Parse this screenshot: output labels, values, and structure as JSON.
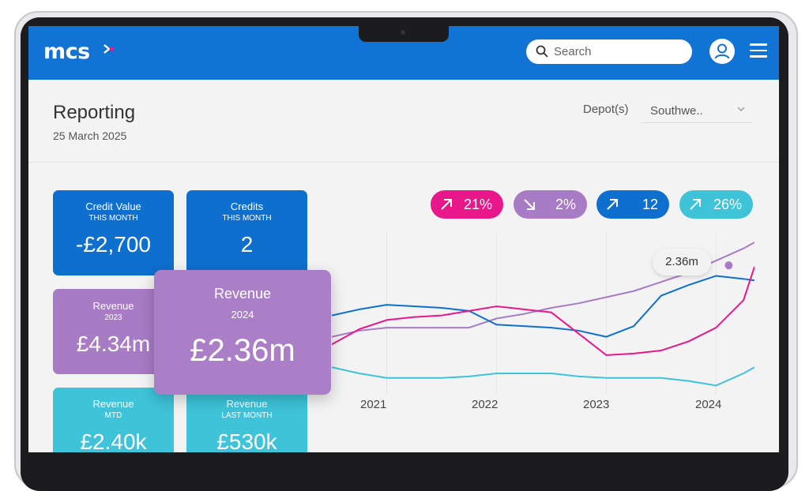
{
  "header": {
    "logo": "mcs",
    "search_placeholder": "Search",
    "icons": [
      "search-icon",
      "user-icon",
      "hamburger-menu-icon"
    ],
    "brand_color": "#1173d4"
  },
  "page": {
    "title": "Reporting",
    "date": "25 March 2025",
    "depot_label": "Depot(s)",
    "depot_value": "Southwe.."
  },
  "cards": {
    "credit_value": {
      "label": "Credit Value",
      "sub": "THIS MONTH",
      "value": "-£2,700"
    },
    "credits": {
      "label": "Credits",
      "sub": "THIS MONTH",
      "value": "2"
    },
    "revenue_2023": {
      "label": "Revenue",
      "sub": "2023",
      "value": "£4.34m"
    },
    "revenue_2024": {
      "label": "Revenue",
      "sub": "2024",
      "value": "£2.36m"
    },
    "revenue_mtd": {
      "label": "Revenue",
      "sub": "MTD",
      "value": "£2.40k"
    },
    "revenue_last_month": {
      "label": "Revenue",
      "sub": "LAST MONTH",
      "value": "£530k"
    }
  },
  "kpi_pills": [
    {
      "direction": "up",
      "value": "21%",
      "color": "#e8178a"
    },
    {
      "direction": "down",
      "value": "2%",
      "color": "#a87bc5"
    },
    {
      "direction": "up",
      "value": "12",
      "color": "#0e6fce"
    },
    {
      "direction": "up",
      "value": "26%",
      "color": "#3ec3d8"
    }
  ],
  "tooltip": "2.36m",
  "chart_data": {
    "type": "line",
    "x_tick_labels": [
      "2021",
      "2022",
      "2023",
      "2024"
    ],
    "x": [
      2020.5,
      2020.75,
      2021,
      2021.25,
      2021.5,
      2021.75,
      2022,
      2022.25,
      2022.5,
      2022.75,
      2023,
      2023.25,
      2023.5,
      2023.75,
      2024,
      2024.25,
      2024.35
    ],
    "xlim": [
      2020.5,
      2024.35
    ],
    "ylim": [
      0,
      100
    ],
    "grid": true,
    "series": [
      {
        "color": "#a87bc5",
        "values": [
          38,
          42,
          44,
          44,
          44,
          44,
          50,
          53,
          57,
          60,
          64,
          68,
          74,
          80,
          88,
          96,
          100
        ]
      },
      {
        "color": "#0e6fce",
        "values": [
          52,
          56,
          59,
          58,
          57,
          55,
          46,
          45,
          44,
          42,
          38,
          45,
          65,
          72,
          78,
          76,
          75
        ]
      },
      {
        "color": "#e8178a",
        "values": [
          33,
          43,
          49,
          51,
          52,
          55,
          58,
          56,
          54,
          40,
          26,
          27,
          29,
          35,
          44,
          62,
          84
        ]
      },
      {
        "color": "#3ec3d8",
        "values": [
          18,
          14,
          11,
          11,
          11,
          12,
          14,
          14,
          14,
          12,
          11,
          11,
          11,
          9,
          6,
          14,
          18
        ]
      }
    ]
  }
}
